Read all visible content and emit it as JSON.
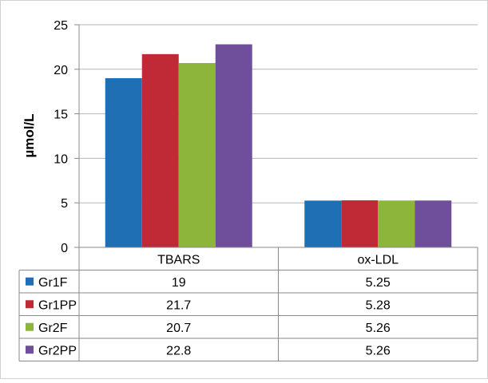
{
  "chart_data": {
    "type": "bar",
    "title": "",
    "ylabel": "µmol/L",
    "xlabel": "",
    "ylim": [
      0,
      25
    ],
    "yticks": [
      0,
      5,
      10,
      15,
      20,
      25
    ],
    "categories": [
      "TBARS",
      "ox-LDL"
    ],
    "series": [
      {
        "name": "Gr1F",
        "color": "#1F6FB5",
        "values": [
          19,
          5.25
        ],
        "labels": [
          "19",
          "5.25"
        ]
      },
      {
        "name": "Gr1PP",
        "color": "#BF2A36",
        "values": [
          21.7,
          5.28
        ],
        "labels": [
          "21.7",
          "5.28"
        ]
      },
      {
        "name": "Gr2F",
        "color": "#8DB53C",
        "values": [
          20.7,
          5.26
        ],
        "labels": [
          "20.7",
          "5.26"
        ]
      },
      {
        "name": "Gr2PP",
        "color": "#6F4E9C",
        "values": [
          22.8,
          5.26
        ],
        "labels": [
          "22.8",
          "5.26"
        ]
      }
    ],
    "grid": true,
    "legend": "data-table-left"
  }
}
